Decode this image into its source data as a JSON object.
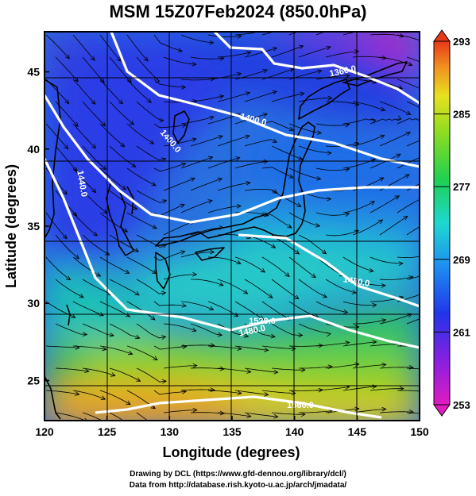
{
  "title": "MSM 15Z07Feb2024 (850.0hPa)",
  "credits": {
    "line1": "Drawing by DCL (https://www.gfd-dennou.org/library/dcl/)",
    "line2": "Data from http://database.rish.kyoto-u.ac.jp/arch/jmadata/"
  },
  "map": {
    "xlabel": "Longitude (degrees)",
    "ylabel": "Latitude  (degrees)",
    "xlim": [
      120,
      150
    ],
    "ylim": [
      22.4,
      47.6
    ],
    "xticks": [
      "120",
      "125",
      "130",
      "135",
      "140",
      "145",
      "150"
    ],
    "yticks": [
      "25",
      "30",
      "35",
      "40",
      "45"
    ],
    "contour_labels": [
      "1360.0",
      "1400.0",
      "1400.0",
      "1440.0",
      "1480.0",
      "1480.0",
      "1520.0",
      "1560.0"
    ]
  },
  "colorbar": {
    "min": 253,
    "max": 293,
    "ticks": [
      "293",
      "285",
      "277",
      "269",
      "261",
      "253"
    ]
  },
  "colors": {
    "cold": "#7a1fd6",
    "cool": "#1f4fe6",
    "mid": "#1fd8d8",
    "warm": "#2ec43a",
    "hot": "#f0a020"
  }
}
